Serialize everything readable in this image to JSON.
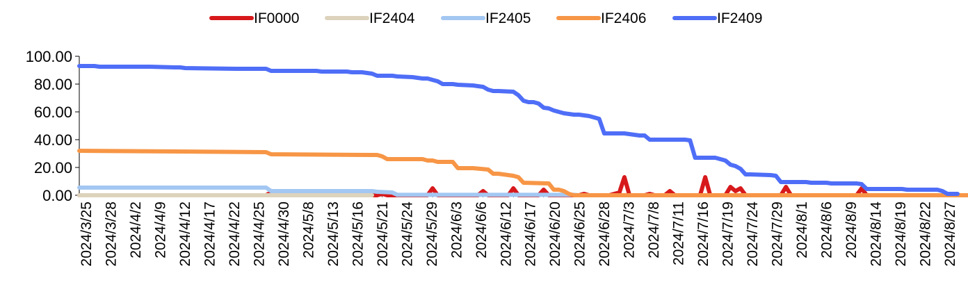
{
  "chart_data": {
    "type": "line",
    "title": "",
    "xlabel": "",
    "ylabel": "",
    "ylim": [
      0,
      100
    ],
    "yticks": [
      "100.00",
      "80.00",
      "60.00",
      "40.00",
      "20.00",
      "0.00"
    ],
    "grid": false,
    "legend_position": "top",
    "x_tick_labels": [
      "2024/3/25",
      "2024/3/28",
      "2024/4/2",
      "2024/4/9",
      "2024/4/12",
      "2024/4/17",
      "2024/4/22",
      "2024/4/25",
      "2024/4/30",
      "2024/5/8",
      "2024/5/13",
      "2024/5/16",
      "2024/5/21",
      "2024/5/24",
      "2024/5/29",
      "2024/6/3",
      "2024/6/6",
      "2024/6/12",
      "2024/6/17",
      "2024/6/20",
      "2024/6/25",
      "2024/6/28",
      "2024/7/3",
      "2024/7/8",
      "2024/7/11",
      "2024/7/16",
      "2024/7/19",
      "2024/7/24",
      "2024/7/29",
      "2024/8/1",
      "2024/8/6",
      "2024/8/9",
      "2024/8/14",
      "2024/8/19",
      "2024/8/22",
      "2024/8/27"
    ],
    "series": [
      {
        "name": "IF0000",
        "color": "#d7191c",
        "points": [
          [
            0,
            0
          ],
          [
            37,
            0
          ],
          [
            38,
            2
          ],
          [
            39,
            0
          ],
          [
            59,
            0
          ],
          [
            60,
            1
          ],
          [
            61,
            0
          ],
          [
            69,
            0
          ],
          [
            70,
            5
          ],
          [
            71,
            0
          ],
          [
            79,
            0
          ],
          [
            80,
            3
          ],
          [
            81,
            0
          ],
          [
            85,
            0
          ],
          [
            86,
            5
          ],
          [
            87,
            0
          ],
          [
            91,
            0
          ],
          [
            92,
            4
          ],
          [
            93,
            0
          ],
          [
            99,
            0
          ],
          [
            100,
            1
          ],
          [
            101,
            0
          ],
          [
            104,
            0
          ],
          [
            105,
            0
          ],
          [
            106,
            1
          ],
          [
            107,
            2
          ],
          [
            108,
            13
          ],
          [
            109,
            0
          ],
          [
            112,
            0
          ],
          [
            113,
            1
          ],
          [
            114,
            0
          ],
          [
            116,
            0
          ],
          [
            117,
            3
          ],
          [
            118,
            0
          ],
          [
            122,
            0
          ],
          [
            123,
            0
          ],
          [
            124,
            13
          ],
          [
            125,
            0
          ],
          [
            128,
            0
          ],
          [
            129,
            6
          ],
          [
            130,
            3
          ],
          [
            131,
            5
          ],
          [
            132,
            0
          ],
          [
            139,
            0
          ],
          [
            140,
            6
          ],
          [
            141,
            0
          ],
          [
            154,
            0
          ],
          [
            155,
            5
          ],
          [
            156,
            0
          ],
          [
            174,
            0
          ]
        ]
      },
      {
        "name": "IF2404",
        "color": "#ddd3bc",
        "points": [
          [
            0,
            0
          ],
          [
            58,
            0
          ]
        ]
      },
      {
        "name": "IF2405",
        "color": "#a3c7f2",
        "points": [
          [
            0,
            5.5
          ],
          [
            37,
            5.5
          ],
          [
            38,
            3
          ],
          [
            58,
            3
          ],
          [
            59,
            2.5
          ],
          [
            62,
            2
          ],
          [
            63,
            0.3
          ],
          [
            98,
            0.3
          ],
          [
            99,
            0
          ]
        ]
      },
      {
        "name": "IF2406",
        "color": "#f79646",
        "points": [
          [
            0,
            32
          ],
          [
            37,
            31
          ],
          [
            38,
            29.5
          ],
          [
            58,
            29
          ],
          [
            59,
            29
          ],
          [
            60,
            28
          ],
          [
            61,
            26
          ],
          [
            62,
            26
          ],
          [
            68,
            26
          ],
          [
            69,
            25
          ],
          [
            70,
            25
          ],
          [
            71,
            24
          ],
          [
            74,
            24
          ],
          [
            75,
            19.5
          ],
          [
            78,
            19.5
          ],
          [
            81,
            18.5
          ],
          [
            82,
            15.5
          ],
          [
            83,
            15.5
          ],
          [
            86,
            14
          ],
          [
            87,
            13
          ],
          [
            88,
            9
          ],
          [
            93,
            8.5
          ],
          [
            94,
            4
          ],
          [
            95,
            4
          ],
          [
            96,
            3
          ],
          [
            97,
            1
          ],
          [
            98,
            0
          ],
          [
            180,
            0
          ]
        ]
      },
      {
        "name": "IF2409",
        "color": "#4f6ef7",
        "points": [
          [
            0,
            93
          ],
          [
            3,
            93
          ],
          [
            4,
            92.5
          ],
          [
            14,
            92.5
          ],
          [
            19,
            92
          ],
          [
            20,
            92
          ],
          [
            21,
            91.5
          ],
          [
            31,
            91
          ],
          [
            37,
            91
          ],
          [
            38,
            89.5
          ],
          [
            40,
            89.5
          ],
          [
            41,
            89.5
          ],
          [
            46,
            89.5
          ],
          [
            47,
            89.5
          ],
          [
            48,
            89
          ],
          [
            53,
            89
          ],
          [
            54,
            88.5
          ],
          [
            56,
            88.5
          ],
          [
            57,
            88
          ],
          [
            58,
            87.5
          ],
          [
            59,
            86
          ],
          [
            61,
            86
          ],
          [
            62,
            86
          ],
          [
            63,
            85.5
          ],
          [
            66,
            85
          ],
          [
            67,
            84.5
          ],
          [
            68,
            84
          ],
          [
            69,
            84
          ],
          [
            70,
            83
          ],
          [
            71,
            82
          ],
          [
            72,
            80
          ],
          [
            74,
            80
          ],
          [
            75,
            79.5
          ],
          [
            78,
            79
          ],
          [
            79,
            78.5
          ],
          [
            80,
            78
          ],
          [
            81,
            76
          ],
          [
            82,
            75
          ],
          [
            83,
            75
          ],
          [
            86,
            74.5
          ],
          [
            87,
            72
          ],
          [
            88,
            68
          ],
          [
            89,
            67
          ],
          [
            90,
            67
          ],
          [
            91,
            66
          ],
          [
            92,
            63
          ],
          [
            93,
            62.5
          ],
          [
            94,
            61
          ],
          [
            95,
            60
          ],
          [
            96,
            59
          ],
          [
            97,
            58.5
          ],
          [
            98,
            58
          ],
          [
            99,
            58
          ],
          [
            100,
            57.5
          ],
          [
            101,
            57
          ],
          [
            102,
            56
          ],
          [
            103,
            55
          ],
          [
            104,
            44.5
          ],
          [
            105,
            44.5
          ],
          [
            108,
            44.5
          ],
          [
            109,
            44
          ],
          [
            110,
            43.5
          ],
          [
            111,
            43
          ],
          [
            112,
            43
          ],
          [
            113,
            40
          ],
          [
            114,
            40
          ],
          [
            116,
            40
          ],
          [
            117,
            40
          ],
          [
            118,
            40
          ],
          [
            119,
            40
          ],
          [
            120,
            40
          ],
          [
            121,
            39.5
          ],
          [
            122,
            27
          ],
          [
            123,
            27
          ],
          [
            126,
            27
          ],
          [
            127,
            26
          ],
          [
            128,
            25
          ],
          [
            129,
            22
          ],
          [
            130,
            21
          ],
          [
            131,
            19
          ],
          [
            132,
            15
          ],
          [
            133,
            15
          ],
          [
            137,
            14.5
          ],
          [
            138,
            14
          ],
          [
            139,
            9.5
          ],
          [
            140,
            9.5
          ],
          [
            144,
            9.5
          ],
          [
            145,
            9
          ],
          [
            148,
            9
          ],
          [
            149,
            8.5
          ],
          [
            150,
            8.5
          ],
          [
            154,
            8.5
          ],
          [
            155,
            8
          ],
          [
            156,
            4.5
          ],
          [
            163,
            4.5
          ],
          [
            164,
            4
          ],
          [
            170,
            4
          ],
          [
            171,
            3
          ],
          [
            172,
            1
          ],
          [
            174,
            1
          ]
        ]
      }
    ]
  }
}
